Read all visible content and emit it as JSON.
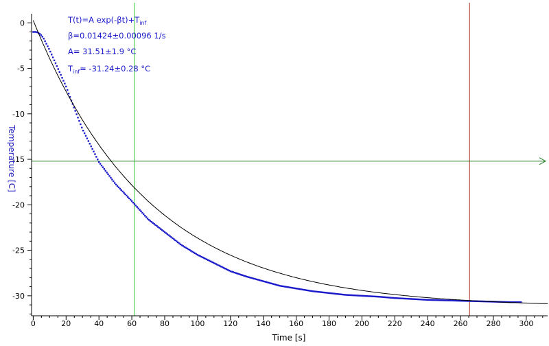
{
  "chart_data": {
    "type": "scatter",
    "title": "",
    "xlabel": "Time [s]",
    "ylabel": "Temperature [C]",
    "xlim": [
      -1,
      313
    ],
    "ylim": [
      -32.2,
      1
    ],
    "xticks": [
      0,
      20,
      40,
      60,
      80,
      100,
      120,
      140,
      160,
      180,
      200,
      220,
      240,
      260,
      280,
      300
    ],
    "yticks": [
      0,
      -5,
      -10,
      -15,
      -20,
      -25,
      -30
    ],
    "grid": false,
    "colors": {
      "data": "#1a1acc",
      "fit": "#000000",
      "cursor_x": "#33cc33",
      "cursor_x2": "#b03020",
      "cursor_y": "#1f7a1f",
      "ylabel": "#2020c0"
    },
    "fit": {
      "model": "T(t)=A exp(-βt)+T",
      "model_sub": "inf",
      "A": 31.51,
      "beta": 0.01424,
      "T_inf": -31.24,
      "x_range": [
        0,
        313
      ],
      "text_lines": [
        {
          "main": "T(t)=A exp(-βt)+T",
          "sub": "inf",
          "tail": ""
        },
        {
          "main": "β=0.01424±0.00096 1/s",
          "sub": "",
          "tail": ""
        },
        {
          "main": "A= 31.51±1.9 °C",
          "sub": "",
          "tail": ""
        },
        {
          "main": "T",
          "sub": "inf",
          "tail": "= -31.24±0.28 °C"
        }
      ]
    },
    "series": [
      {
        "x": [
          0,
          2,
          4,
          6,
          8,
          10,
          15,
          20,
          25,
          30,
          40,
          50,
          60,
          70,
          80,
          90,
          100,
          110,
          120,
          130,
          140,
          150,
          160,
          170,
          180,
          190,
          200,
          210,
          220,
          230,
          240,
          250,
          260,
          270,
          280,
          290,
          297
        ],
        "y": [
          -1.0,
          -1.0,
          -1.2,
          -1.6,
          -2.3,
          -3.0,
          -5.0,
          -7.0,
          -9.4,
          -11.7,
          -15.3,
          -17.7,
          -19.6,
          -21.6,
          -23.0,
          -24.4,
          -25.5,
          -26.4,
          -27.3,
          -27.9,
          -28.4,
          -28.9,
          -29.2,
          -29.5,
          -29.7,
          -29.9,
          -30.0,
          -30.1,
          -30.25,
          -30.35,
          -30.45,
          -30.5,
          -30.55,
          -30.6,
          -30.65,
          -30.7,
          -30.7
        ]
      }
    ],
    "cursors": {
      "x_green": 61.5,
      "x_red": 265.5,
      "y_green": -15.2
    }
  }
}
